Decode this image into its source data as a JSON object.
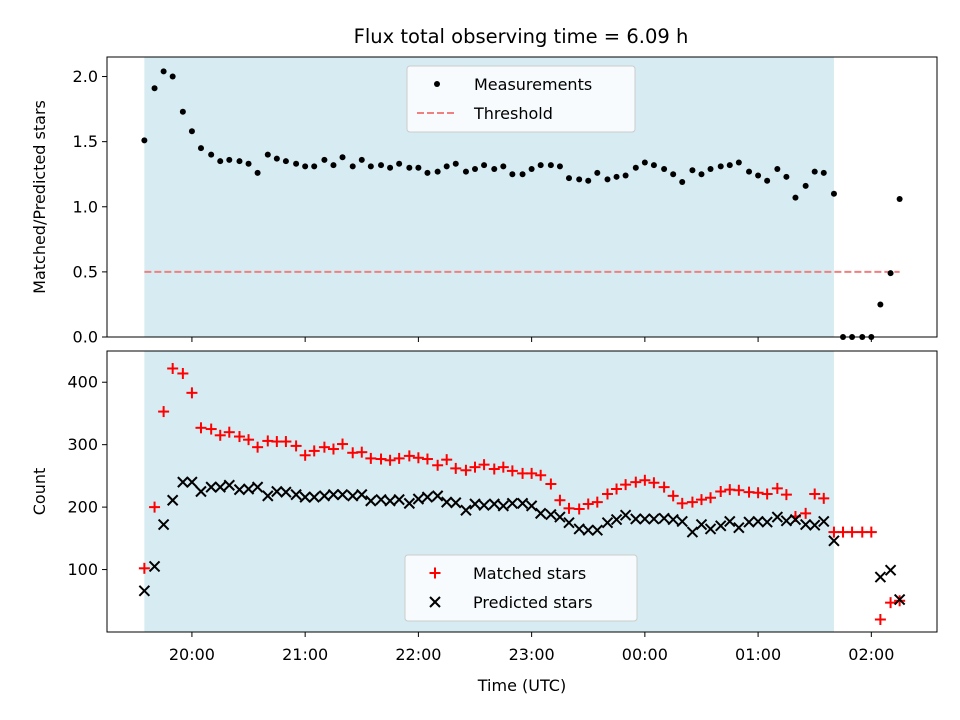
{
  "chart_data": {
    "title": "Flux total observing time = 6.09 h",
    "xlabel": "Time (UTC)",
    "x_unit": "hours UTC, continuing past midnight (24.0 = 00:00)",
    "x_ticks": [
      {
        "value": 20,
        "label": "20:00"
      },
      {
        "value": 21,
        "label": "21:00"
      },
      {
        "value": 22,
        "label": "22:00"
      },
      {
        "value": 23,
        "label": "23:00"
      },
      {
        "value": 24,
        "label": "00:00"
      },
      {
        "value": 25,
        "label": "01:00"
      },
      {
        "value": 26,
        "label": "02:00"
      }
    ],
    "xlim": [
      19.25,
      26.58
    ],
    "shaded_interval": [
      19.58,
      25.67
    ],
    "shade_color": "#add8e6",
    "panels": [
      {
        "id": "ratio",
        "type": "scatter",
        "ylabel": "Matched/Predicted stars",
        "ylim": [
          0,
          2.15
        ],
        "y_ticks": [
          "0.0",
          "0.5",
          "1.0",
          "1.5",
          "2.0"
        ],
        "series": [
          {
            "name": "Measurements",
            "marker": "dot",
            "color": "#000000",
            "x": [
              19.58,
              19.67,
              19.75,
              19.83,
              19.92,
              20.0,
              20.08,
              20.17,
              20.25,
              20.33,
              20.42,
              20.5,
              20.58,
              20.67,
              20.75,
              20.83,
              20.92,
              21.0,
              21.08,
              21.17,
              21.25,
              21.33,
              21.42,
              21.5,
              21.58,
              21.67,
              21.75,
              21.83,
              21.92,
              22.0,
              22.08,
              22.17,
              22.25,
              22.33,
              22.42,
              22.5,
              22.58,
              22.67,
              22.75,
              22.83,
              22.92,
              23.0,
              23.08,
              23.17,
              23.25,
              23.33,
              23.42,
              23.5,
              23.58,
              23.67,
              23.75,
              23.83,
              23.92,
              24.0,
              24.08,
              24.17,
              24.25,
              24.33,
              24.42,
              24.5,
              24.58,
              24.67,
              24.75,
              24.83,
              24.92,
              25.0,
              25.08,
              25.17,
              25.25,
              25.33,
              25.42,
              25.5,
              25.58,
              25.67,
              25.75,
              25.83,
              25.92,
              26.0,
              26.08,
              26.17,
              26.25
            ],
            "values": [
              1.51,
              1.91,
              2.04,
              2.0,
              1.73,
              1.58,
              1.45,
              1.4,
              1.35,
              1.36,
              1.35,
              1.33,
              1.26,
              1.4,
              1.37,
              1.35,
              1.33,
              1.31,
              1.31,
              1.36,
              1.32,
              1.38,
              1.31,
              1.36,
              1.31,
              1.32,
              1.3,
              1.33,
              1.3,
              1.3,
              1.26,
              1.27,
              1.31,
              1.33,
              1.27,
              1.29,
              1.32,
              1.29,
              1.31,
              1.25,
              1.25,
              1.29,
              1.32,
              1.32,
              1.31,
              1.22,
              1.21,
              1.2,
              1.26,
              1.21,
              1.23,
              1.24,
              1.3,
              1.34,
              1.32,
              1.29,
              1.25,
              1.19,
              1.28,
              1.25,
              1.29,
              1.31,
              1.32,
              1.34,
              1.27,
              1.24,
              1.2,
              1.29,
              1.23,
              1.07,
              1.16,
              1.27,
              1.26,
              1.1,
              0.0,
              0.0,
              0.0,
              0.0,
              0.25,
              0.49,
              1.06
            ]
          },
          {
            "name": "Threshold",
            "type": "line",
            "style": "dashed",
            "color": "#f08080",
            "x": [
              19.58,
              26.25
            ],
            "values": [
              0.5,
              0.5
            ]
          }
        ],
        "legend_position": "top-center"
      },
      {
        "id": "counts",
        "type": "scatter",
        "ylabel": "Count",
        "ylim": [
          0,
          450
        ],
        "y_ticks": [
          "100",
          "200",
          "300",
          "400"
        ],
        "series": [
          {
            "name": "Matched stars",
            "marker": "plus",
            "color": "#ff0000",
            "x": [
              19.58,
              19.67,
              19.75,
              19.83,
              19.92,
              20.0,
              20.08,
              20.17,
              20.25,
              20.33,
              20.42,
              20.5,
              20.58,
              20.67,
              20.75,
              20.83,
              20.92,
              21.0,
              21.08,
              21.17,
              21.25,
              21.33,
              21.42,
              21.5,
              21.58,
              21.67,
              21.75,
              21.83,
              21.92,
              22.0,
              22.08,
              22.17,
              22.25,
              22.33,
              22.42,
              22.5,
              22.58,
              22.67,
              22.75,
              22.83,
              22.92,
              23.0,
              23.08,
              23.17,
              23.25,
              23.33,
              23.42,
              23.5,
              23.58,
              23.67,
              23.75,
              23.83,
              23.92,
              24.0,
              24.08,
              24.17,
              24.25,
              24.33,
              24.42,
              24.5,
              24.58,
              24.67,
              24.75,
              24.83,
              24.92,
              25.0,
              25.08,
              25.17,
              25.25,
              25.33,
              25.42,
              25.5,
              25.58,
              25.67,
              25.75,
              25.83,
              25.92,
              26.0,
              26.08,
              26.17,
              26.25
            ],
            "values": [
              102,
              200,
              353,
              422,
              414,
              383,
              327,
              325,
              315,
              320,
              313,
              308,
              296,
              306,
              305,
              305,
              298,
              283,
              290,
              296,
              293,
              301,
              287,
              288,
              278,
              277,
              275,
              278,
              282,
              279,
              277,
              267,
              276,
              262,
              259,
              264,
              268,
              261,
              264,
              258,
              254,
              254,
              251,
              237,
              211,
              198,
              197,
              205,
              208,
              221,
              229,
              236,
              240,
              243,
              239,
              232,
              218,
              206,
              208,
              212,
              215,
              225,
              228,
              227,
              224,
              223,
              221,
              230,
              220,
              185,
              190,
              221,
              214,
              160,
              160,
              160,
              160,
              160,
              20,
              47,
              50
            ]
          },
          {
            "name": "Predicted stars",
            "marker": "x",
            "color": "#000000",
            "x": [
              19.58,
              19.67,
              19.75,
              19.83,
              19.92,
              20.0,
              20.08,
              20.17,
              20.25,
              20.33,
              20.42,
              20.5,
              20.58,
              20.67,
              20.75,
              20.83,
              20.92,
              21.0,
              21.08,
              21.17,
              21.25,
              21.33,
              21.42,
              21.5,
              21.58,
              21.67,
              21.75,
              21.83,
              21.92,
              22.0,
              22.08,
              22.17,
              22.25,
              22.33,
              22.42,
              22.5,
              22.58,
              22.67,
              22.75,
              22.83,
              22.92,
              23.0,
              23.08,
              23.17,
              23.25,
              23.33,
              23.42,
              23.5,
              23.58,
              23.67,
              23.75,
              23.83,
              23.92,
              24.0,
              24.08,
              24.17,
              24.25,
              24.33,
              24.42,
              24.5,
              24.58,
              24.67,
              24.75,
              24.83,
              24.92,
              25.0,
              25.08,
              25.17,
              25.25,
              25.33,
              25.42,
              25.5,
              25.58,
              25.67,
              26.08,
              26.17,
              26.25
            ],
            "values": [
              66,
              105,
              172,
              211,
              240,
              240,
              225,
              232,
              232,
              235,
              228,
              229,
              232,
              218,
              225,
              224,
              220,
              216,
              216,
              218,
              220,
              220,
              218,
              220,
              210,
              212,
              210,
              212,
              206,
              213,
              216,
              218,
              208,
              207,
              195,
              205,
              203,
              205,
              202,
              206,
              206,
              202,
              190,
              188,
              184,
              175,
              165,
              163,
              163,
              175,
              180,
              187,
              181,
              181,
              181,
              182,
              180,
              177,
              160,
              172,
              165,
              170,
              177,
              167,
              176,
              177,
              176,
              184,
              178,
              180,
              172,
              171,
              177,
              146,
              88,
              99,
              52
            ]
          }
        ],
        "legend_position": "bottom-center"
      }
    ]
  }
}
